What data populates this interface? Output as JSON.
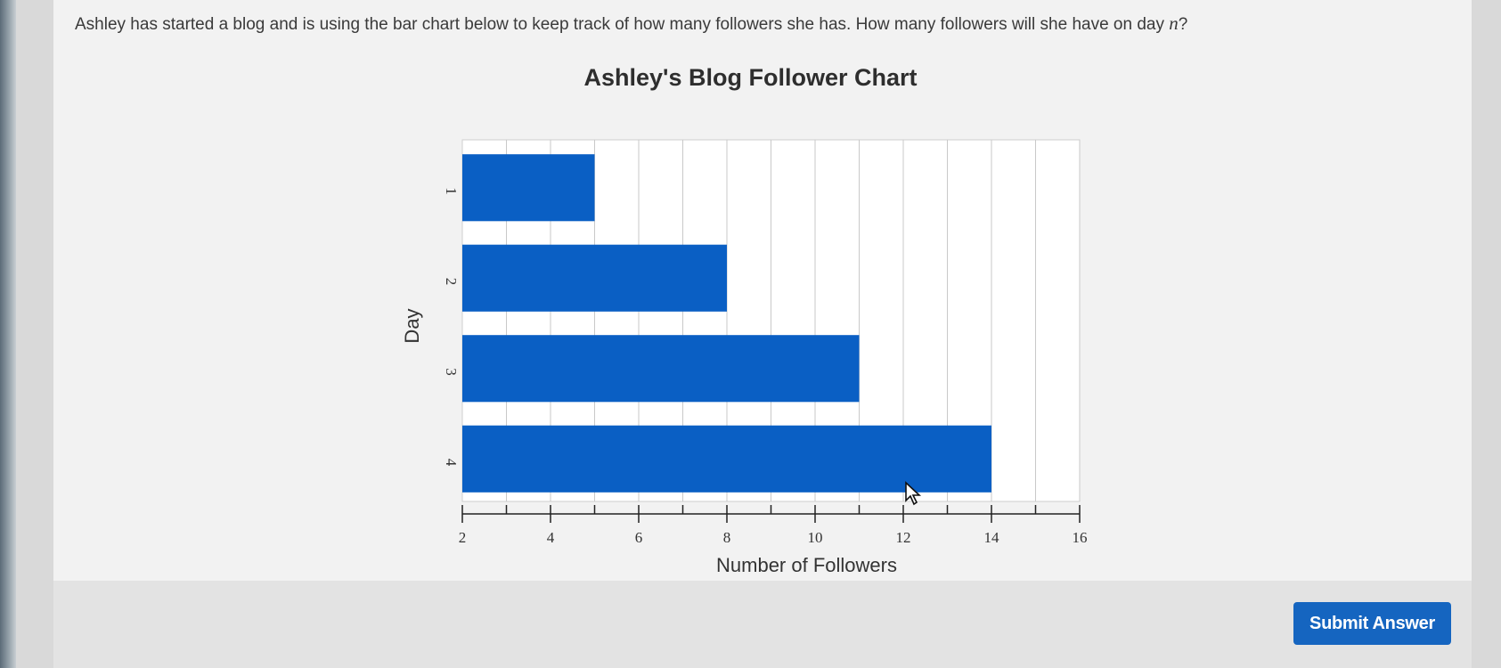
{
  "question": {
    "text": "Ashley has started a blog and is using the bar chart below to keep track of how many followers she has. How many followers will she have on day ",
    "variable": "n",
    "end": "?"
  },
  "chart_data": {
    "type": "bar",
    "orientation": "horizontal",
    "title": "Ashley's Blog Follower Chart",
    "xlabel": "Number of Followers",
    "ylabel": "Day",
    "categories": [
      "1",
      "2",
      "3",
      "4"
    ],
    "values": [
      5,
      8,
      11,
      14
    ],
    "xlim": [
      2,
      16
    ],
    "x_ticks": [
      2,
      4,
      6,
      8,
      10,
      12,
      14,
      16
    ],
    "grid": "vertical lines every 1",
    "bar_color": "#0a5fc4"
  },
  "submit_label": "Submit Answer"
}
